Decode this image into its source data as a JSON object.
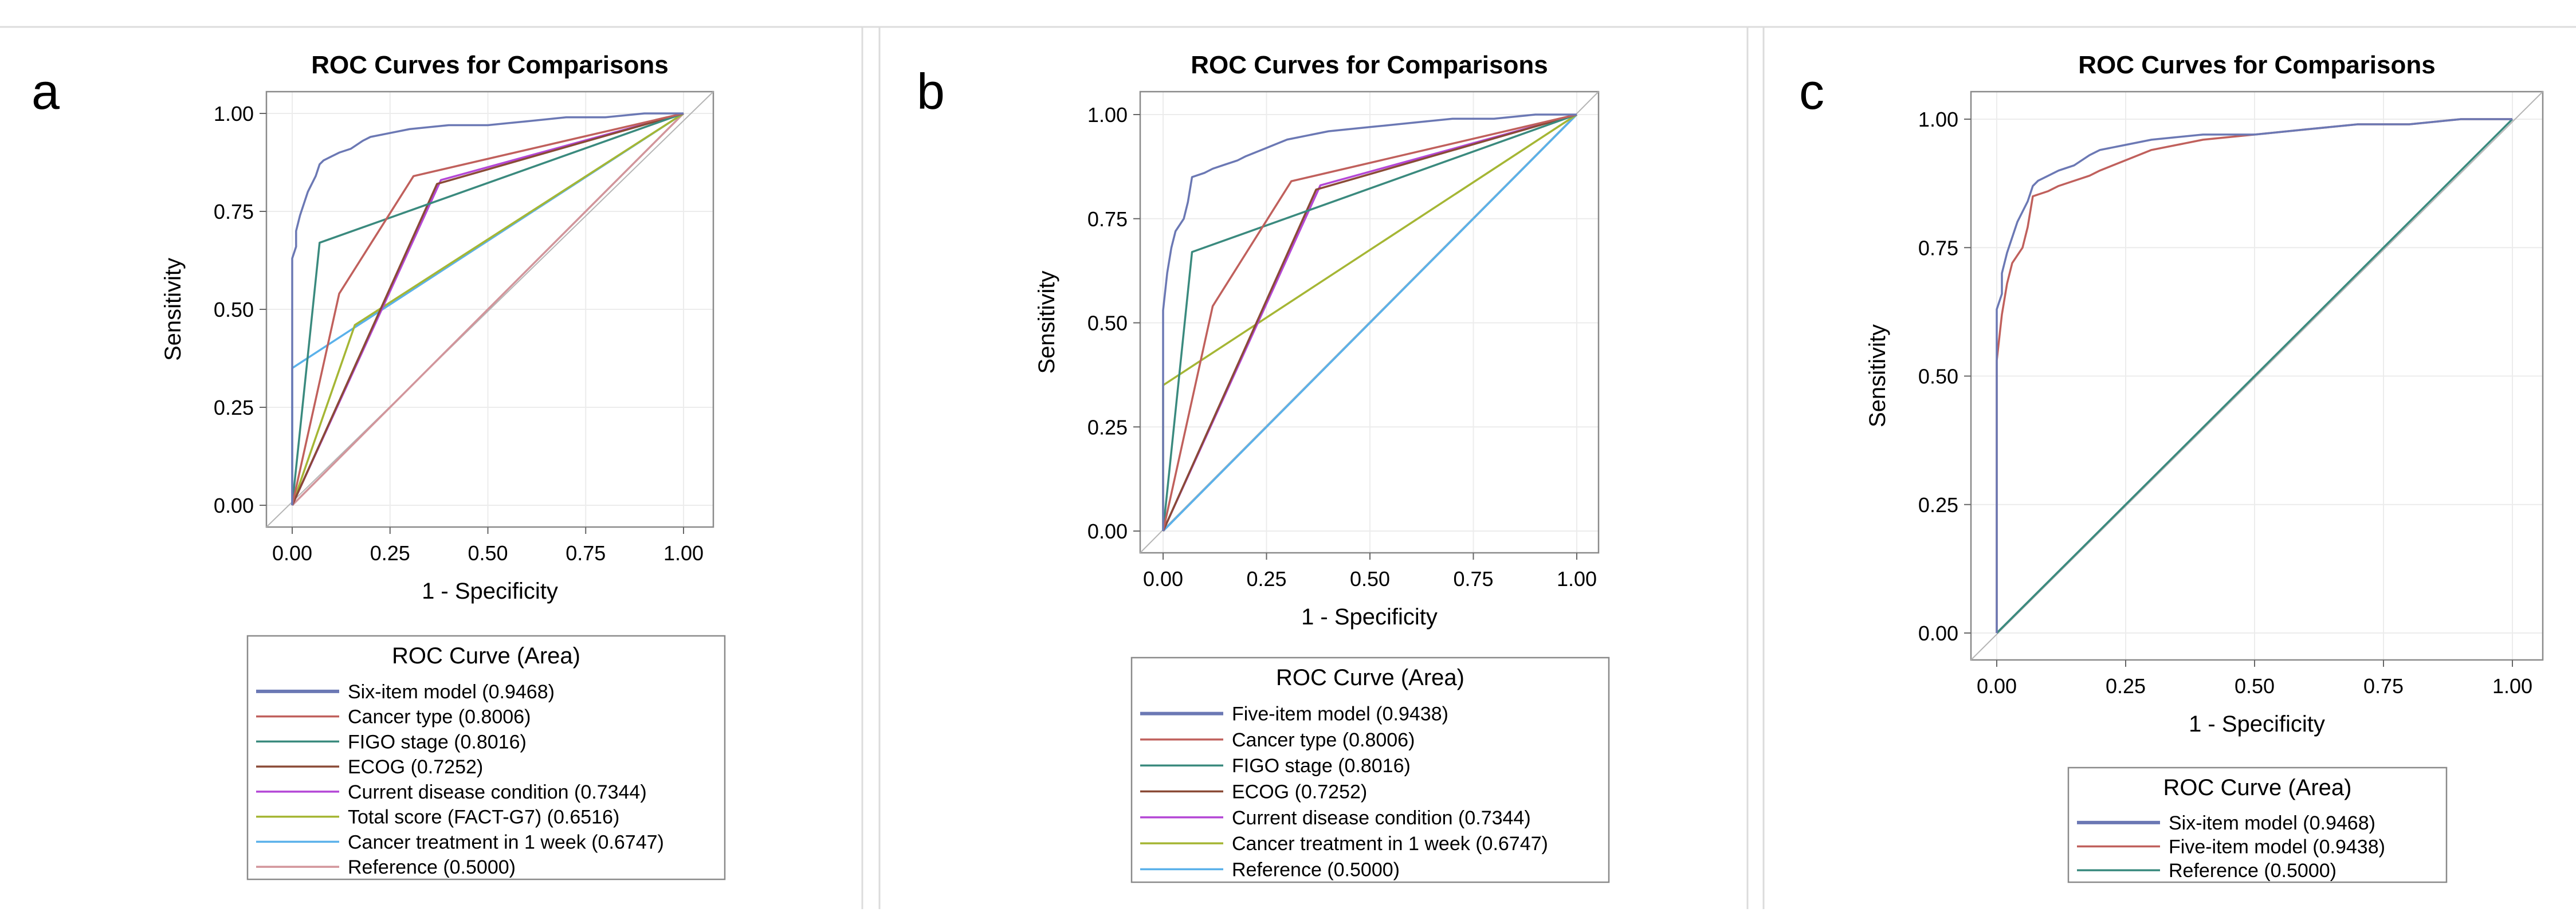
{
  "figure": {
    "panels": [
      {
        "letter": "a"
      },
      {
        "letter": "b"
      },
      {
        "letter": "c"
      }
    ]
  },
  "chart_data": [
    {
      "type": "line",
      "panel": "a",
      "title": "ROC Curves for Comparisons",
      "xlabel": "1 - Specificity",
      "ylabel": "Sensitivity",
      "xlim": [
        0,
        1
      ],
      "ylim": [
        0,
        1
      ],
      "xticks": [
        "0.00",
        "0.25",
        "0.50",
        "0.75",
        "1.00"
      ],
      "yticks": [
        "0.00",
        "0.25",
        "0.50",
        "0.75",
        "1.00"
      ],
      "grid": true,
      "legend_title": "ROC Curve (Area)",
      "legend_position": "bottom",
      "series": [
        {
          "name": "Six-item model",
          "area": "(0.9468)",
          "color": "#6b78b4",
          "x": [
            0,
            0,
            0.01,
            0.01,
            0.02,
            0.03,
            0.04,
            0.06,
            0.07,
            0.08,
            0.1,
            0.12,
            0.15,
            0.18,
            0.2,
            0.25,
            0.3,
            0.4,
            0.5,
            0.6,
            0.7,
            0.8,
            0.9,
            1.0
          ],
          "y": [
            0,
            0.63,
            0.66,
            0.7,
            0.74,
            0.77,
            0.8,
            0.84,
            0.87,
            0.88,
            0.89,
            0.9,
            0.91,
            0.93,
            0.94,
            0.95,
            0.96,
            0.97,
            0.97,
            0.98,
            0.99,
            0.99,
            1.0,
            1.0
          ]
        },
        {
          "name": "Cancer type",
          "area": "(0.8006)",
          "color": "#c0605c",
          "x": [
            0,
            0.12,
            0.31,
            1.0
          ],
          "y": [
            0,
            0.54,
            0.84,
            1.0
          ]
        },
        {
          "name": "FIGO stage",
          "area": "(0.8016)",
          "color": "#3a8a7e",
          "x": [
            0,
            0.07,
            1.0
          ],
          "y": [
            0,
            0.67,
            1.0
          ]
        },
        {
          "name": "ECOG",
          "area": "(0.7252)",
          "color": "#8a4a36",
          "x": [
            0,
            0.37,
            1.0
          ],
          "y": [
            0,
            0.82,
            1.0
          ]
        },
        {
          "name": "Current disease condition",
          "area": "(0.7344)",
          "color": "#b447d6",
          "x": [
            0,
            0.38,
            1.0
          ],
          "y": [
            0,
            0.83,
            1.0
          ]
        },
        {
          "name": "Total score (FACT-G7)",
          "area": "(0.6516)",
          "color": "#a5b634",
          "x": [
            0,
            0.16,
            1.0
          ],
          "y": [
            0,
            0.46,
            1.0
          ]
        },
        {
          "name": "Cancer treatment in 1 week",
          "area": "(0.6747)",
          "color": "#5ab1ea",
          "x": [
            0,
            0,
            1.0
          ],
          "y": [
            0,
            0.35,
            1.0
          ]
        },
        {
          "name": "Reference",
          "area": "(0.5000)",
          "color": "#d2959b",
          "x": [
            0,
            1
          ],
          "y": [
            0,
            1
          ]
        }
      ]
    },
    {
      "type": "line",
      "panel": "b",
      "title": "ROC Curves for Comparisons",
      "xlabel": "1 - Specificity",
      "ylabel": "Sensitivity",
      "xlim": [
        0,
        1
      ],
      "ylim": [
        0,
        1
      ],
      "xticks": [
        "0.00",
        "0.25",
        "0.50",
        "0.75",
        "1.00"
      ],
      "yticks": [
        "0.00",
        "0.25",
        "0.50",
        "0.75",
        "1.00"
      ],
      "grid": true,
      "legend_title": "ROC Curve (Area)",
      "legend_position": "bottom",
      "series": [
        {
          "name": "Five-item model",
          "area": "(0.9438)",
          "color": "#6b78b4",
          "x": [
            0,
            0,
            0.01,
            0.02,
            0.03,
            0.05,
            0.06,
            0.07,
            0.1,
            0.12,
            0.15,
            0.18,
            0.2,
            0.25,
            0.3,
            0.4,
            0.5,
            0.6,
            0.7,
            0.8,
            0.9,
            1.0
          ],
          "y": [
            0,
            0.53,
            0.62,
            0.68,
            0.72,
            0.75,
            0.79,
            0.85,
            0.86,
            0.87,
            0.88,
            0.89,
            0.9,
            0.92,
            0.94,
            0.96,
            0.97,
            0.98,
            0.99,
            0.99,
            1.0,
            1.0
          ]
        },
        {
          "name": "Cancer type",
          "area": "(0.8006)",
          "color": "#c0605c",
          "x": [
            0,
            0.12,
            0.31,
            1.0
          ],
          "y": [
            0,
            0.54,
            0.84,
            1.0
          ]
        },
        {
          "name": "FIGO stage",
          "area": "(0.8016)",
          "color": "#3a8a7e",
          "x": [
            0,
            0.07,
            1.0
          ],
          "y": [
            0,
            0.67,
            1.0
          ]
        },
        {
          "name": "ECOG",
          "area": "(0.7252)",
          "color": "#8a4a36",
          "x": [
            0,
            0.37,
            1.0
          ],
          "y": [
            0,
            0.82,
            1.0
          ]
        },
        {
          "name": "Current disease condition",
          "area": "(0.7344)",
          "color": "#b447d6",
          "x": [
            0,
            0.38,
            1.0
          ],
          "y": [
            0,
            0.83,
            1.0
          ]
        },
        {
          "name": "Cancer treatment in 1 week",
          "area": "(0.6747)",
          "color": "#a5b634",
          "x": [
            0,
            0,
            1.0
          ],
          "y": [
            0,
            0.35,
            1.0
          ]
        },
        {
          "name": "Reference",
          "area": "(0.5000)",
          "color": "#5ab1ea",
          "x": [
            0,
            1
          ],
          "y": [
            0,
            1
          ]
        }
      ]
    },
    {
      "type": "line",
      "panel": "c",
      "title": "ROC Curves for Comparisons",
      "xlabel": "1 - Specificity",
      "ylabel": "Sensitivity",
      "xlim": [
        0,
        1
      ],
      "ylim": [
        0,
        1
      ],
      "xticks": [
        "0.00",
        "0.25",
        "0.50",
        "0.75",
        "1.00"
      ],
      "yticks": [
        "0.00",
        "0.25",
        "0.50",
        "0.75",
        "1.00"
      ],
      "grid": true,
      "legend_title": "ROC Curve (Area)",
      "legend_position": "bottom",
      "series": [
        {
          "name": "Six-item model",
          "area": "(0.9468)",
          "color": "#6b78b4",
          "x": [
            0,
            0,
            0.01,
            0.01,
            0.02,
            0.03,
            0.04,
            0.06,
            0.07,
            0.08,
            0.1,
            0.12,
            0.15,
            0.18,
            0.2,
            0.25,
            0.3,
            0.4,
            0.5,
            0.6,
            0.7,
            0.8,
            0.9,
            1.0
          ],
          "y": [
            0,
            0.63,
            0.66,
            0.7,
            0.74,
            0.77,
            0.8,
            0.84,
            0.87,
            0.88,
            0.89,
            0.9,
            0.91,
            0.93,
            0.94,
            0.95,
            0.96,
            0.97,
            0.97,
            0.98,
            0.99,
            0.99,
            1.0,
            1.0
          ]
        },
        {
          "name": "Five-item model",
          "area": "(0.9438)",
          "color": "#c0605c",
          "x": [
            0,
            0,
            0.01,
            0.02,
            0.03,
            0.05,
            0.06,
            0.07,
            0.1,
            0.12,
            0.15,
            0.18,
            0.2,
            0.25,
            0.3,
            0.4,
            0.5,
            0.6,
            0.7,
            0.8,
            0.9,
            1.0
          ],
          "y": [
            0,
            0.53,
            0.62,
            0.68,
            0.72,
            0.75,
            0.79,
            0.85,
            0.86,
            0.87,
            0.88,
            0.89,
            0.9,
            0.92,
            0.94,
            0.96,
            0.97,
            0.98,
            0.99,
            0.99,
            1.0,
            1.0
          ]
        },
        {
          "name": "Reference",
          "area": "(0.5000)",
          "color": "#3a8a7e",
          "x": [
            0,
            1
          ],
          "y": [
            0,
            1
          ]
        }
      ]
    }
  ]
}
